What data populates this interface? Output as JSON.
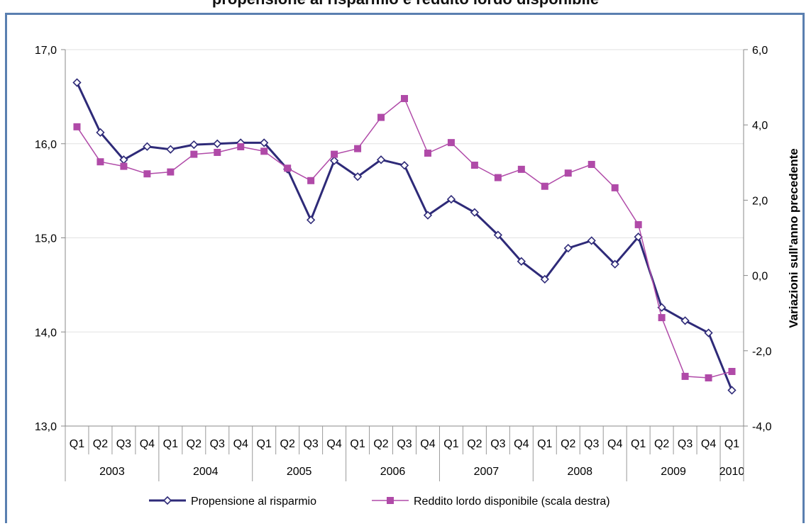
{
  "title": "propensione al risparmio e reddito lordo disponibile",
  "chart_data": {
    "type": "line",
    "categories": [
      "Q1",
      "Q2",
      "Q3",
      "Q4",
      "Q1",
      "Q2",
      "Q3",
      "Q4",
      "Q1",
      "Q2",
      "Q3",
      "Q4",
      "Q1",
      "Q2",
      "Q3",
      "Q4",
      "Q1",
      "Q2",
      "Q3",
      "Q4",
      "Q1",
      "Q2",
      "Q3",
      "Q4",
      "Q1",
      "Q2",
      "Q3",
      "Q4",
      "Q1"
    ],
    "years": [
      {
        "label": "2003",
        "start": 0,
        "count": 4
      },
      {
        "label": "2004",
        "start": 4,
        "count": 4
      },
      {
        "label": "2005",
        "start": 8,
        "count": 4
      },
      {
        "label": "2006",
        "start": 12,
        "count": 4
      },
      {
        "label": "2007",
        "start": 16,
        "count": 4
      },
      {
        "label": "2008",
        "start": 20,
        "count": 4
      },
      {
        "label": "2009",
        "start": 24,
        "count": 4
      },
      {
        "label": "2010",
        "start": 28,
        "count": 1
      }
    ],
    "y_left": {
      "ylim": [
        13.0,
        17.0
      ],
      "ticks": [
        "13,0",
        "14,0",
        "15,0",
        "16,0",
        "17,0"
      ],
      "tick_values": [
        13,
        14,
        15,
        16,
        17
      ]
    },
    "y_right": {
      "ylim": [
        -4.0,
        6.0
      ],
      "ticks": [
        "-4,0",
        "-2,0",
        "0,0",
        "2,0",
        "4,0",
        "6,0"
      ],
      "tick_values": [
        -4,
        -2,
        0,
        2,
        4,
        6
      ],
      "label": "Variazioni sull'anno precedente"
    },
    "series": [
      {
        "name": "Propensione al risparmio",
        "axis": "left",
        "color": "#2e2a78",
        "marker": "diamond",
        "values": [
          16.65,
          16.12,
          15.83,
          15.97,
          15.94,
          15.99,
          16.0,
          16.01,
          16.01,
          15.73,
          15.19,
          15.82,
          15.65,
          15.83,
          15.77,
          15.24,
          15.41,
          15.27,
          15.03,
          14.75,
          14.56,
          14.89,
          14.97,
          14.72,
          15.01,
          14.26,
          14.12,
          13.99,
          13.38
        ]
      },
      {
        "name": "Reddito lordo disponibile (scala destra)",
        "axis": "right",
        "color": "#b04aa8",
        "marker": "square",
        "values": [
          3.95,
          3.02,
          2.9,
          2.7,
          2.75,
          3.22,
          3.27,
          3.42,
          3.3,
          2.85,
          2.52,
          3.22,
          3.37,
          4.2,
          4.7,
          3.25,
          3.53,
          2.93,
          2.6,
          2.82,
          2.37,
          2.72,
          2.95,
          2.33,
          1.35,
          -1.12,
          -2.68,
          -2.72,
          -2.55
        ]
      }
    ],
    "legend_position": "bottom",
    "grid": true
  }
}
